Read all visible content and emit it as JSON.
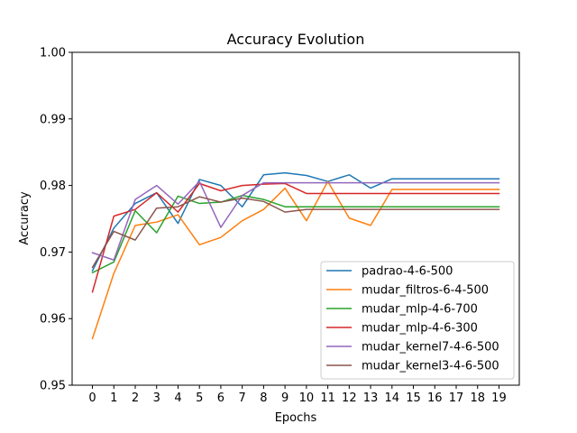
{
  "chart_data": {
    "type": "line",
    "title": "Accuracy Evolution",
    "xlabel": "Epochs",
    "ylabel": "Accuracy",
    "ylim": [
      0.95,
      1.0
    ],
    "xlim": [
      -0.95,
      19.95
    ],
    "x": [
      0,
      1,
      2,
      3,
      4,
      5,
      6,
      7,
      8,
      9,
      10,
      11,
      12,
      13,
      14,
      15,
      16,
      17,
      18,
      19
    ],
    "x_ticks": [
      "0",
      "1",
      "2",
      "3",
      "4",
      "5",
      "6",
      "7",
      "8",
      "9",
      "10",
      "11",
      "12",
      "13",
      "14",
      "15",
      "16",
      "17",
      "18",
      "19"
    ],
    "y_ticks": [
      0.95,
      0.96,
      0.97,
      0.98,
      0.99,
      1.0
    ],
    "y_tick_labels": [
      "0.95",
      "0.96",
      "0.97",
      "0.98",
      "0.99",
      "1.00"
    ],
    "grid": false,
    "legend_position": "lower-right",
    "series": [
      {
        "name": "padrao-4-6-500",
        "color": "#1f77b4",
        "values": [
          0.9672,
          0.9736,
          0.9773,
          0.9789,
          0.9743,
          0.9809,
          0.98,
          0.9768,
          0.9816,
          0.9819,
          0.9815,
          0.9806,
          0.9816,
          0.9796,
          0.981,
          0.981,
          0.981,
          0.981,
          0.981,
          0.981
        ]
      },
      {
        "name": "mudar_filtros-6-4-500",
        "color": "#ff7f0e",
        "values": [
          0.957,
          0.9668,
          0.974,
          0.9745,
          0.9756,
          0.9711,
          0.9722,
          0.9747,
          0.9764,
          0.9796,
          0.9747,
          0.9806,
          0.9751,
          0.974,
          0.9794,
          0.9794,
          0.9794,
          0.9794,
          0.9794,
          0.9794
        ]
      },
      {
        "name": "mudar_mlp-4-6-700",
        "color": "#2ca02c",
        "values": [
          0.9669,
          0.9685,
          0.9762,
          0.9729,
          0.9784,
          0.9773,
          0.9775,
          0.9785,
          0.9779,
          0.9768,
          0.9768,
          0.9768,
          0.9768,
          0.9768,
          0.9768,
          0.9768,
          0.9768,
          0.9768,
          0.9768,
          0.9768
        ]
      },
      {
        "name": "mudar_mlp-4-6-300",
        "color": "#d62728",
        "values": [
          0.964,
          0.9754,
          0.9764,
          0.9789,
          0.976,
          0.9803,
          0.9792,
          0.98,
          0.9802,
          0.9803,
          0.9788,
          0.9788,
          0.9788,
          0.9788,
          0.9788,
          0.9788,
          0.9788,
          0.9788,
          0.9788,
          0.9788
        ]
      },
      {
        "name": "mudar_kernel7-4-6-500",
        "color": "#9467bd",
        "values": [
          0.9699,
          0.9688,
          0.9779,
          0.98,
          0.9772,
          0.9806,
          0.9737,
          0.9785,
          0.9804,
          0.9804,
          0.9804,
          0.9804,
          0.9804,
          0.9804,
          0.9804,
          0.9804,
          0.9804,
          0.9804,
          0.9804,
          0.9804
        ]
      },
      {
        "name": "mudar_kernel3-4-6-500",
        "color": "#8c564b",
        "values": [
          0.9677,
          0.9731,
          0.9718,
          0.9766,
          0.9768,
          0.9783,
          0.9775,
          0.9781,
          0.9776,
          0.976,
          0.9764,
          0.9764,
          0.9764,
          0.9764,
          0.9764,
          0.9764,
          0.9764,
          0.9764,
          0.9764,
          0.9764
        ]
      }
    ]
  }
}
